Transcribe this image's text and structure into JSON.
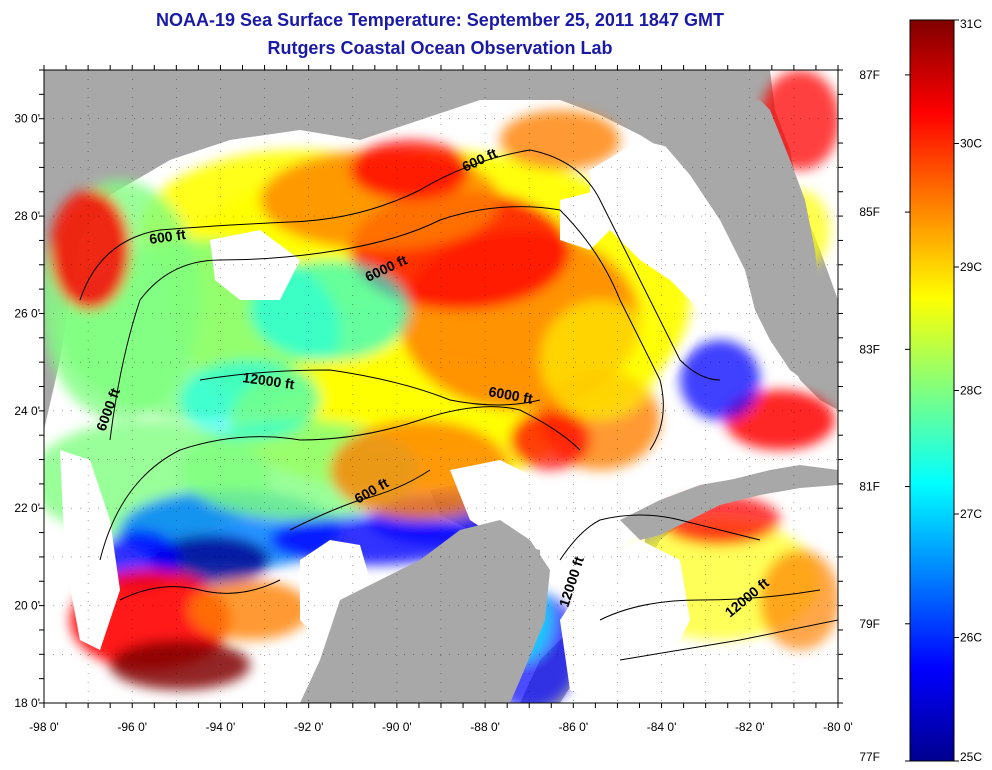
{
  "title": {
    "line1": "NOAA-19 Sea Surface Temperature:  September 25, 2011 1847 GMT",
    "line2": "Rutgers Coastal Ocean Observation Lab"
  },
  "map": {
    "lon_range": [
      -98,
      -80
    ],
    "lat_range": [
      18,
      31
    ],
    "lon_ticks": [
      "-98 0'",
      "-96 0'",
      "-94 0'",
      "-92 0'",
      "-90 0'",
      "-88 0'",
      "-86 0'",
      "-84 0'",
      "-82 0'",
      "-80 0'"
    ],
    "lat_ticks": [
      "18 0'",
      "20 0'",
      "22 0'",
      "24 0'",
      "26 0'",
      "28 0'",
      "30 0'"
    ],
    "contour_labels": [
      {
        "text": "600 ft"
      },
      {
        "text": "600 ft"
      },
      {
        "text": "6000 ft"
      },
      {
        "text": "12000 ft"
      },
      {
        "text": "6000 ft"
      },
      {
        "text": "6000 ft"
      },
      {
        "text": "600 ft"
      },
      {
        "text": "12000 ft"
      },
      {
        "text": "12000 ft"
      }
    ],
    "colors": {
      "land": "#a8a8a8",
      "cloud": "#ffffff",
      "grid": "#000000"
    }
  },
  "colorbar": {
    "celsius_labels": [
      "31C",
      "30C",
      "29C",
      "28C",
      "27C",
      "26C",
      "25C"
    ],
    "fahrenheit_labels": [
      "87F",
      "85F",
      "83F",
      "81F",
      "79F",
      "77F"
    ],
    "range_c": [
      25,
      31
    ],
    "stops": [
      "#00008f",
      "#0000ff",
      "#0080ff",
      "#00ffff",
      "#80ff80",
      "#ffff00",
      "#ff8000",
      "#ff0000",
      "#800000"
    ]
  }
}
